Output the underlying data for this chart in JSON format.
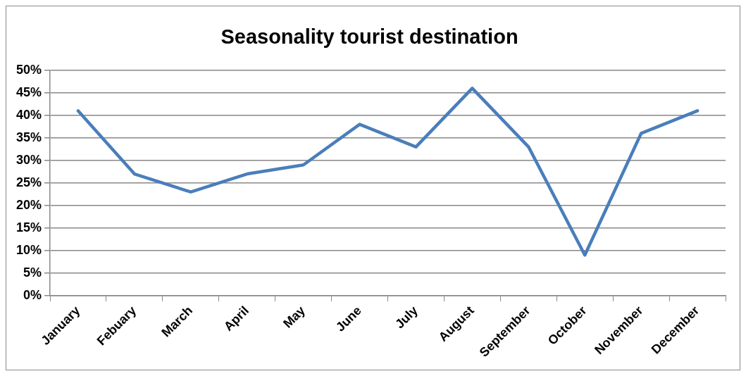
{
  "chart_data": {
    "type": "line",
    "title": "Seasonality tourist destination",
    "categories": [
      "January",
      "Febuary",
      "March",
      "April",
      "May",
      "June",
      "July",
      "August",
      "September",
      "October",
      "November",
      "December"
    ],
    "series": [
      {
        "color": "#4a7ebb",
        "values": [
          41,
          27,
          23,
          27,
          29,
          38,
          33,
          46,
          33,
          9,
          36,
          41
        ]
      }
    ],
    "ylim": [
      0,
      50
    ],
    "yticks": [
      {
        "value": 0,
        "label": "0%"
      },
      {
        "value": 5,
        "label": "5%"
      },
      {
        "value": 10,
        "label": "10%"
      },
      {
        "value": 15,
        "label": "15%"
      },
      {
        "value": 20,
        "label": "20%"
      },
      {
        "value": 25,
        "label": "25%"
      },
      {
        "value": 30,
        "label": "30%"
      },
      {
        "value": 35,
        "label": "35%"
      },
      {
        "value": 40,
        "label": "40%"
      },
      {
        "value": 45,
        "label": "45%"
      },
      {
        "value": 50,
        "label": "50%"
      }
    ],
    "grid": "y",
    "legend": false,
    "marker": "none",
    "line_style": "solid"
  }
}
